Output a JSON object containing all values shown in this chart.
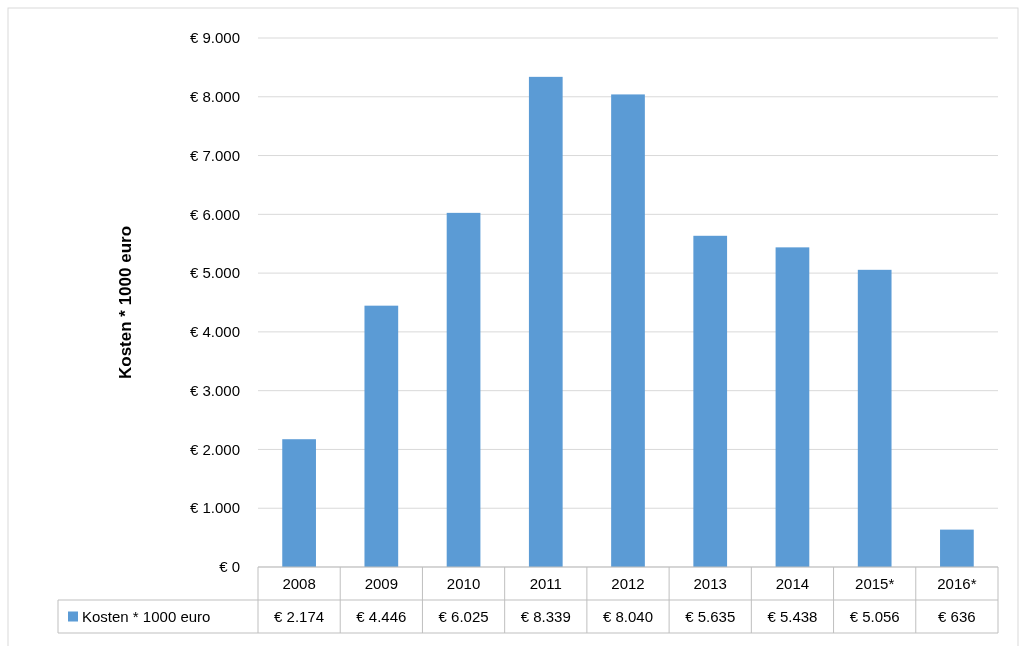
{
  "chart_data": {
    "type": "bar",
    "ylabel": "Kosten * 1000 euro",
    "categories": [
      "2008",
      "2009",
      "2010",
      "2011",
      "2012",
      "2013",
      "2014",
      "2015*",
      "2016*"
    ],
    "series": [
      {
        "name": "Kosten * 1000 euro",
        "color": "#5b9bd5",
        "values": [
          2174,
          4446,
          6025,
          8339,
          8040,
          5635,
          5438,
          5056,
          636
        ],
        "value_labels": [
          "€ 2.174",
          "€ 4.446",
          "€ 6.025",
          "€ 8.339",
          "€ 8.040",
          "€ 5.635",
          "€ 5.438",
          "€ 5.056",
          "€ 636"
        ]
      }
    ],
    "ylim": [
      0,
      9000
    ],
    "yticks": [
      {
        "value": 0,
        "label": "€ 0"
      },
      {
        "value": 1000,
        "label": "€ 1.000"
      },
      {
        "value": 2000,
        "label": "€ 2.000"
      },
      {
        "value": 3000,
        "label": "€ 3.000"
      },
      {
        "value": 4000,
        "label": "€ 4.000"
      },
      {
        "value": 5000,
        "label": "€ 5.000"
      },
      {
        "value": 6000,
        "label": "€ 6.000"
      },
      {
        "value": 7000,
        "label": "€ 7.000"
      },
      {
        "value": 8000,
        "label": "€ 8.000"
      },
      {
        "value": 9000,
        "label": "€ 9.000"
      }
    ],
    "grid": "y",
    "legend": "bottom"
  }
}
